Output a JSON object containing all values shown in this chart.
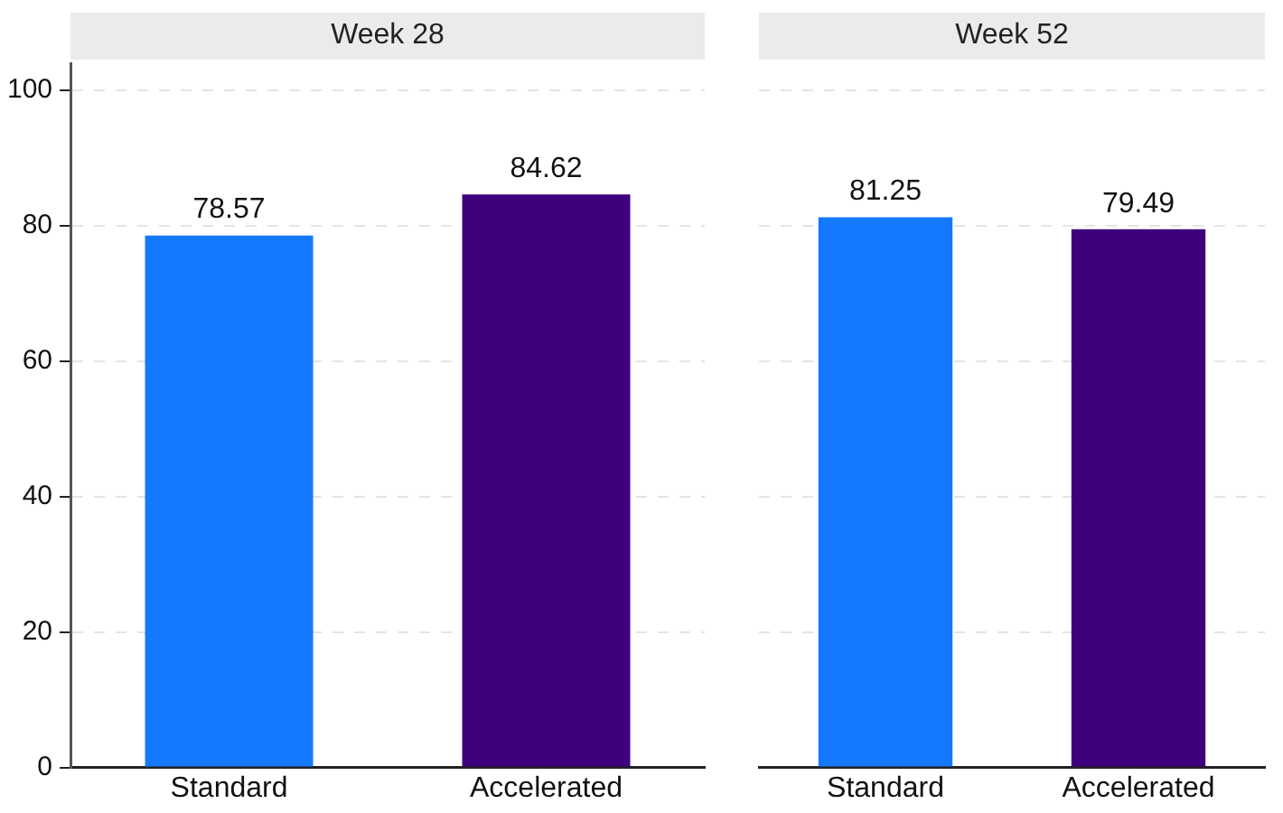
{
  "chart_data": [
    {
      "type": "bar",
      "title": "Week 28",
      "categories": [
        "Standard",
        "Accelerated"
      ],
      "values": [
        78.57,
        84.62
      ],
      "colors": [
        "#1479fe",
        "#3f007d"
      ],
      "ylim": [
        0,
        104
      ],
      "yticks": [
        0,
        20,
        40,
        60,
        80,
        100
      ],
      "grid": "y",
      "data_labels": true
    },
    {
      "type": "bar",
      "title": "Week 52",
      "categories": [
        "Standard",
        "Accelerated"
      ],
      "values": [
        81.25,
        79.49
      ],
      "colors": [
        "#1479fe",
        "#3f007d"
      ],
      "grid": "y",
      "data_labels": true,
      "tick_labels": "x"
    }
  ]
}
